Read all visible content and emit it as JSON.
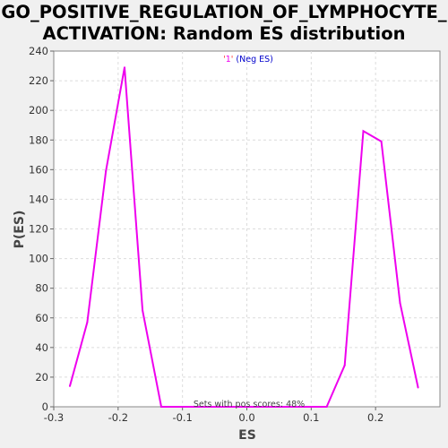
{
  "chart_data": {
    "type": "line",
    "title_line1": "GO_POSITIVE_REGULATION_OF_LYMPHOCYTE_",
    "title_line2": "ACTIVATION: Random ES distribution",
    "xlabel": "ES",
    "ylabel": "P(ES)",
    "xlim": [
      -0.3,
      0.3
    ],
    "ylim": [
      0,
      240
    ],
    "xticks": [
      -0.3,
      -0.2,
      -0.1,
      0.0,
      0.1,
      0.2
    ],
    "xtick_labels": [
      "-0.3",
      "-0.2",
      "-0.1",
      "0.0",
      "0.1",
      "0.2"
    ],
    "yticks": [
      0,
      20,
      40,
      60,
      80,
      100,
      120,
      140,
      160,
      180,
      200,
      220,
      240
    ],
    "ytick_labels": [
      "0",
      "20",
      "40",
      "60",
      "80",
      "100",
      "120",
      "140",
      "160",
      "180",
      "200",
      "220",
      "240"
    ],
    "grid": true,
    "legend": {
      "placement": "top-center",
      "quote_open": "'",
      "label": "1",
      "quote_close": "'",
      "suffix": " (Neg ES)"
    },
    "annotation": "Sets with pos scores: 48%",
    "series": [
      {
        "color": "#ee00ee",
        "x": [
          -0.275,
          -0.248,
          -0.219,
          -0.19,
          -0.162,
          -0.133,
          0.124,
          0.152,
          0.181,
          0.209,
          0.238,
          0.266
        ],
        "y": [
          14,
          57,
          159,
          229,
          65,
          0,
          0,
          28,
          186,
          179,
          70,
          13
        ]
      }
    ]
  }
}
